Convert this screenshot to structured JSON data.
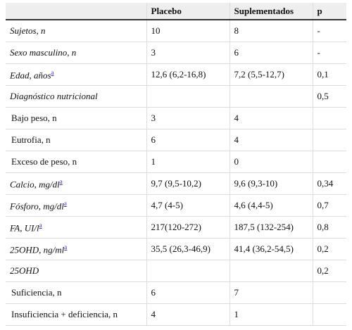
{
  "table": {
    "header": [
      "Placebo",
      "Suplementados",
      "p"
    ],
    "rows": [
      {
        "label": "Sujetos, n",
        "italic": true,
        "cells": [
          "10",
          "8",
          "-"
        ]
      },
      {
        "label": "Sexo masculino, n",
        "italic": true,
        "cells": [
          "3",
          "6",
          "-"
        ]
      },
      {
        "label": "Edad, años",
        "note": "a",
        "italic": true,
        "cells": [
          "12,6 (6,2-16,8)",
          "7,2 (5,5-12,7)",
          "0,1"
        ]
      },
      {
        "label": "Diagnóstico nutricional",
        "italic": true,
        "cells": [
          null,
          null,
          "0,5"
        ]
      },
      {
        "label": "Bajo peso, n",
        "indent": true,
        "cells": [
          "3",
          "4",
          null
        ]
      },
      {
        "label": "Eutrofia, n",
        "indent": true,
        "cells": [
          "6",
          "4",
          null
        ]
      },
      {
        "label": "Exceso de peso, n",
        "indent": true,
        "cells": [
          "1",
          "0",
          null
        ]
      },
      {
        "label": "Calcio, mg/dl",
        "note": "a",
        "italic": true,
        "cells": [
          "9,7 (9,5-10,2)",
          "9,6 (9,3-10)",
          "0,34"
        ]
      },
      {
        "label": "Fósforo, mg/dl",
        "note": "a",
        "italic": true,
        "cells": [
          "4,7 (4-5)",
          "4,6 (4,4-5)",
          "0,7"
        ]
      },
      {
        "label": "FA, UI/l",
        "note": "a",
        "italic": true,
        "cells": [
          "217(120-272)",
          "187,5 (132-254)",
          "0,8"
        ]
      },
      {
        "label": "25OHD, ng/ml",
        "note": "a",
        "italic": true,
        "cells": [
          "35,5 (26,3-46,9)",
          "41,4 (36,2-54,5)",
          "0,2"
        ]
      },
      {
        "label": "25OHD",
        "italic": true,
        "cells": [
          null,
          null,
          "0,2"
        ]
      },
      {
        "label": "Suficiencia, n",
        "indent": true,
        "cells": [
          "6",
          "7",
          null
        ]
      },
      {
        "label": "Insuficiencia + deficiencia, n",
        "indent": true,
        "cells": [
          "4",
          "1",
          null
        ]
      }
    ]
  }
}
